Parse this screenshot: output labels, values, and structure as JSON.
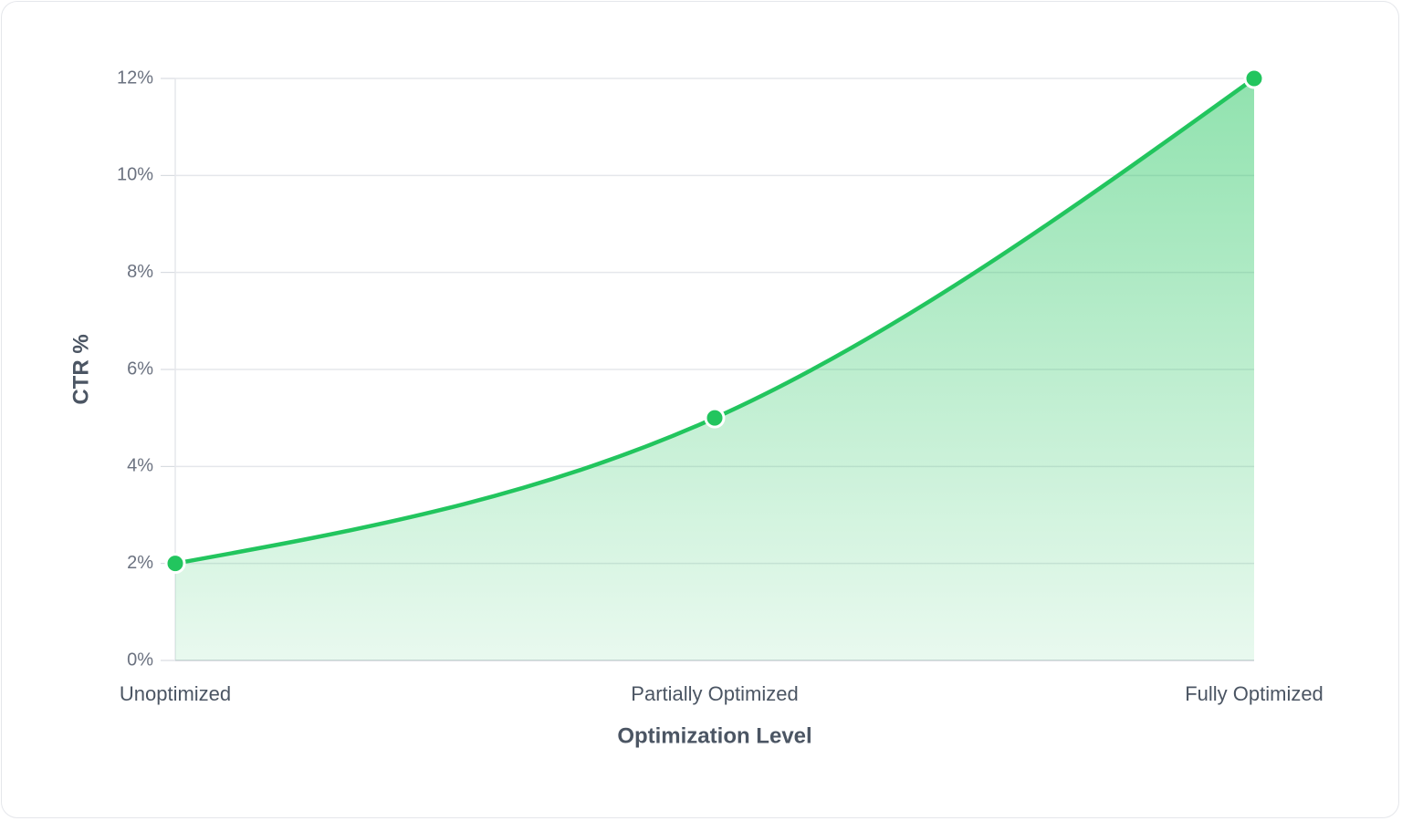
{
  "chart_data": {
    "type": "area",
    "categories": [
      "Unoptimized",
      "Partially Optimized",
      "Fully Optimized"
    ],
    "values": [
      2,
      5,
      12
    ],
    "color": "#22c55e",
    "x_label": "Optimization Level",
    "y_label": "CTR %",
    "ylim": [
      0,
      12
    ],
    "yticks": [
      {
        "value": 0,
        "label": "0%"
      },
      {
        "value": 2,
        "label": "2%"
      },
      {
        "value": 4,
        "label": "4%"
      },
      {
        "value": 6,
        "label": "6%"
      },
      {
        "value": 8,
        "label": "8%"
      },
      {
        "value": 10,
        "label": "10%"
      },
      {
        "value": 12,
        "label": "12%"
      }
    ],
    "grid": true
  }
}
